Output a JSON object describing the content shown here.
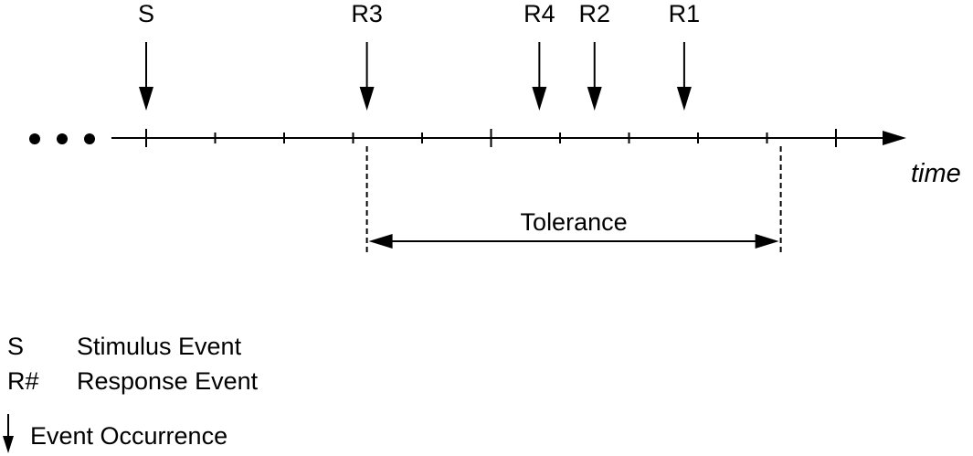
{
  "colors": {
    "ink": "#000000",
    "background": "#ffffff"
  },
  "timeline": {
    "axis_label": "time",
    "ellipsis": "• • •",
    "tick_count": 11
  },
  "events": [
    {
      "id": "stimulus",
      "label": "S",
      "tick": 0
    },
    {
      "id": "response-3",
      "label": "R3",
      "tick": 3.2
    },
    {
      "id": "response-4",
      "label": "R4",
      "tick": 5.7
    },
    {
      "id": "response-2",
      "label": "R2",
      "tick": 6.5
    },
    {
      "id": "response-1",
      "label": "R1",
      "tick": 7.8
    }
  ],
  "tolerance": {
    "label": "Tolerance",
    "start_tick": 3.2,
    "end_tick": 9.2
  },
  "legend": [
    {
      "symbol": "S",
      "text": "Stimulus Event"
    },
    {
      "symbol": "R#",
      "text": "Response Event"
    },
    {
      "symbol_icon": "down-arrow-icon",
      "text": "Event Occurrence"
    }
  ]
}
